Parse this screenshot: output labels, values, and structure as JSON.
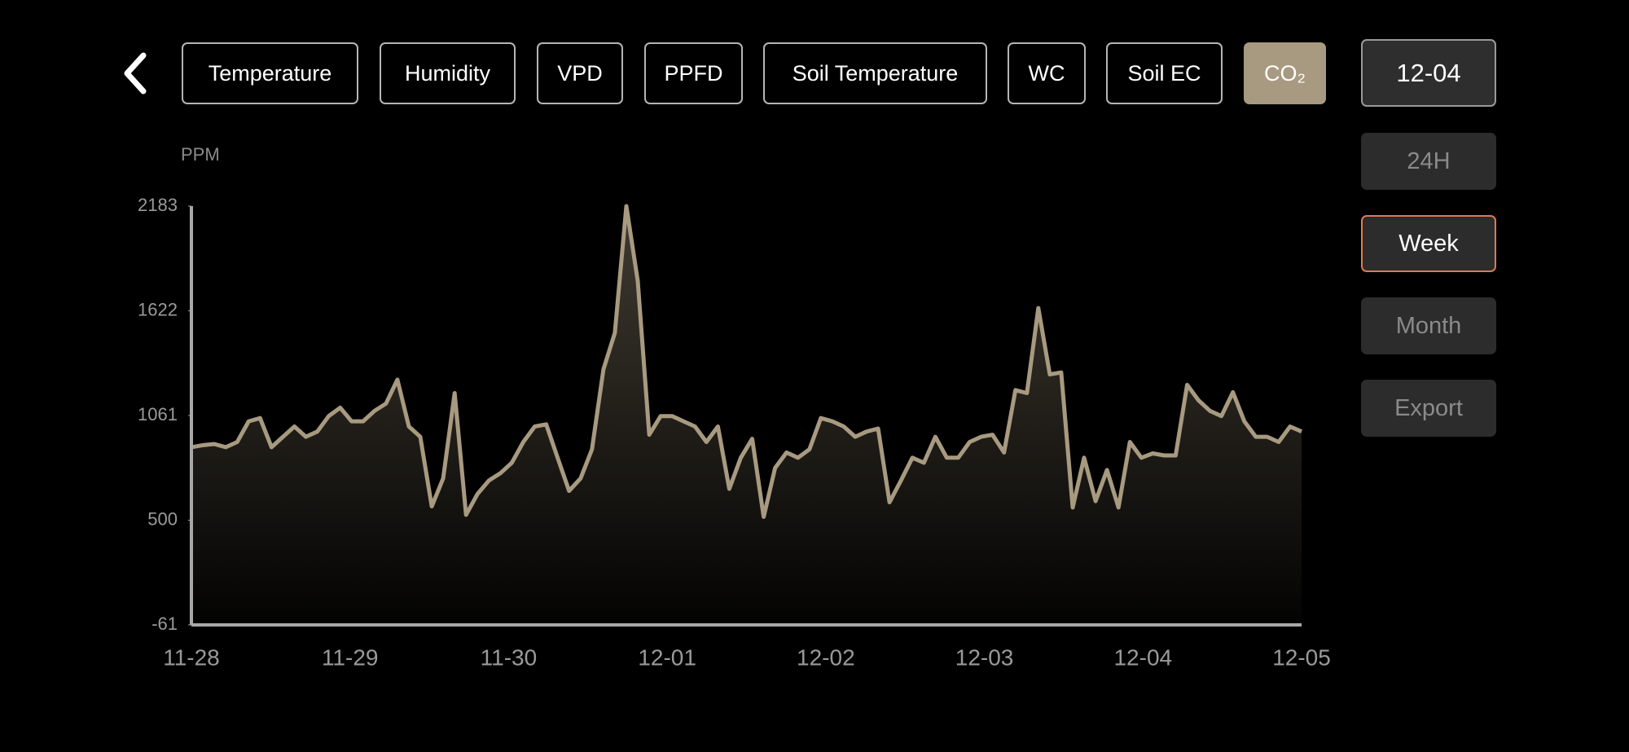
{
  "tabs": [
    {
      "label": "Temperature"
    },
    {
      "label": "Humidity"
    },
    {
      "label": "VPD"
    },
    {
      "label": "PPFD"
    },
    {
      "label": "Soil Temperature"
    },
    {
      "label": "WC"
    },
    {
      "label": "Soil EC"
    },
    {
      "label": "CO₂",
      "active": true
    }
  ],
  "date": "12-04",
  "ranges": [
    {
      "label": "24H"
    },
    {
      "label": "Week",
      "active": true
    },
    {
      "label": "Month"
    }
  ],
  "export": "Export",
  "chart_data": {
    "type": "line",
    "y_label": "PPM",
    "color": "#a89a80",
    "ylim": [
      -61,
      2183
    ],
    "yticks": [
      2183,
      1622,
      1061,
      500,
      -61
    ],
    "xticks": [
      "11-28",
      "11-29",
      "11-30",
      "12-01",
      "12-02",
      "12-03",
      "12-04",
      "12-05"
    ],
    "values": [
      891,
      902,
      908,
      891,
      919,
      1030,
      1047,
      891,
      947,
      1002,
      947,
      975,
      1058,
      1103,
      1030,
      1030,
      1086,
      1125,
      1253,
      1002,
      947,
      574,
      724,
      1181,
      529,
      641,
      713,
      752,
      808,
      919,
      1002,
      1014,
      835,
      657,
      724,
      880,
      1309,
      1504,
      2183,
      1782,
      958,
      1058,
      1058,
      1030,
      1002,
      919,
      1002,
      668,
      835,
      936,
      518,
      780,
      863,
      835,
      880,
      1047,
      1030,
      1002,
      947,
      975,
      991,
      596,
      713,
      835,
      808,
      947,
      835,
      835,
      919,
      947,
      958,
      863,
      1197,
      1181,
      1637,
      1281,
      1292,
      568,
      835,
      602,
      769,
      568,
      919,
      835,
      858,
      847,
      847,
      1225,
      1142,
      1086,
      1058,
      1186,
      1030,
      947,
      947,
      919,
      1002,
      975
    ]
  }
}
